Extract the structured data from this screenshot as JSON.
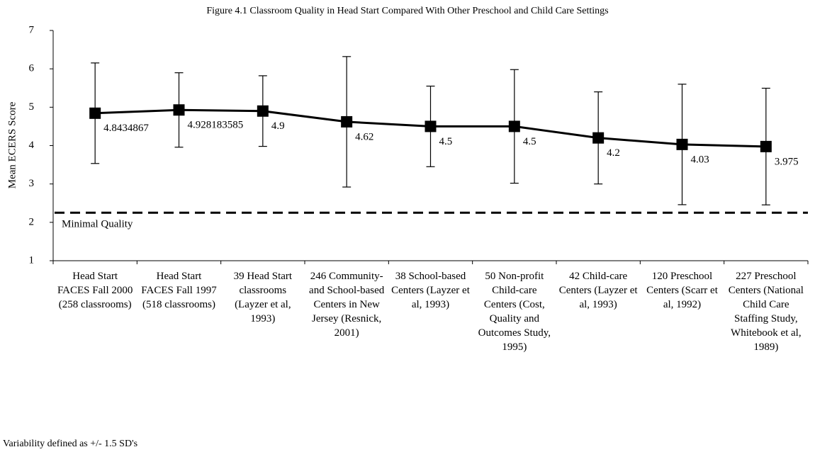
{
  "chart_data": {
    "type": "line",
    "title": "Figure 4.1  Classroom Quality in Head Start Compared With Other Preschool and Child Care Settings",
    "y_label": "Mean ECERS Score",
    "categories": [
      "Head Start FACES Fall 2000 (258 classrooms)",
      "Head Start FACES Fall 1997 (518 classrooms)",
      "39 Head Start classrooms (Layzer et al, 1993)",
      "246 Community- and School-based Centers in New Jersey (Resnick, 2001)",
      "38 School-based Centers (Layzer et al, 1993)",
      "50 Non-profit Child-care Centers (Cost, Quality and Outcomes Study, 1995)",
      "42 Child-care Centers (Layzer et al, 1993)",
      "120 Preschool Centers (Scarr et al, 1992)",
      "227 Preschool Centers (National Child Care Staffing Study, Whitebook et al, 1989)"
    ],
    "series": [
      {
        "name": "Mean ECERS Score",
        "color": "#000000",
        "values": [
          4.8434867,
          4.928183585,
          4.9,
          4.62,
          4.5,
          4.5,
          4.2,
          4.03,
          3.975
        ],
        "errors": [
          1.31,
          0.97,
          0.92,
          1.7,
          1.05,
          1.48,
          1.2,
          1.57,
          1.52
        ]
      }
    ],
    "reference_line": {
      "label": "Minimal Quality",
      "value": 2.25
    },
    "note": "Variability defined as +/- 1.5 SD's",
    "ylim": [
      1,
      7
    ],
    "yticks": [
      1,
      2,
      3,
      4,
      5,
      6,
      7
    ],
    "grid": false
  }
}
